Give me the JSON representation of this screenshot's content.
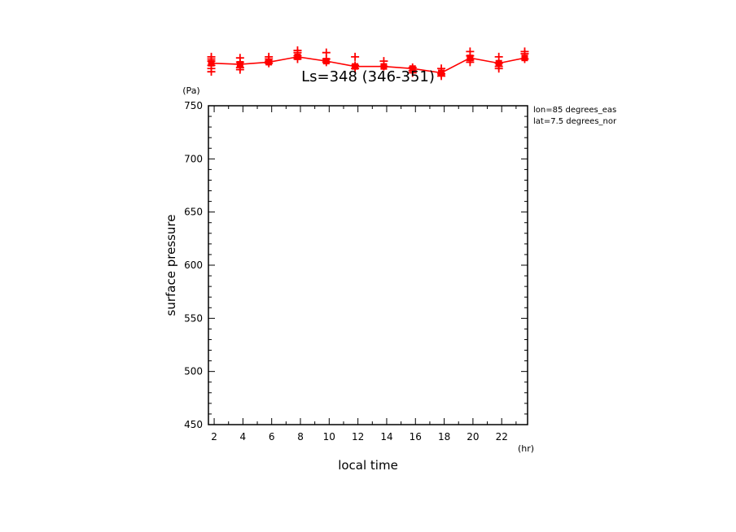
{
  "chart_data": {
    "type": "line",
    "title": "Ls=348 (346-351)",
    "xlabel": "local time",
    "ylabel": "surface pressure",
    "x_unit": "(hr)",
    "y_unit": "(Pa)",
    "annotations": [
      "lon=85 degrees_eas",
      "lat=7.5 degrees_nor"
    ],
    "xlim": [
      1.6,
      23.8
    ],
    "ylim": [
      450,
      750
    ],
    "x_ticks": [
      2,
      4,
      6,
      8,
      10,
      12,
      14,
      16,
      18,
      20,
      22
    ],
    "y_ticks": [
      450,
      500,
      550,
      600,
      650,
      700,
      750
    ],
    "color": "#ff0000",
    "mean": {
      "x": [
        1.8,
        3.8,
        5.8,
        7.8,
        9.8,
        11.8,
        13.8,
        15.8,
        17.8,
        19.8,
        21.8,
        23.6
      ],
      "y": [
        790,
        789,
        791,
        796,
        792,
        787,
        787,
        785,
        781,
        795,
        790,
        795
      ]
    },
    "samples": {
      "x": [
        1.8,
        1.8,
        1.8,
        1.8,
        1.8,
        1.8,
        3.8,
        3.8,
        3.8,
        3.8,
        5.8,
        5.8,
        5.8,
        5.8,
        7.8,
        7.8,
        7.8,
        7.8,
        9.8,
        9.8,
        9.8,
        11.8,
        11.8,
        11.8,
        13.8,
        13.8,
        15.8,
        15.8,
        15.8,
        17.8,
        17.8,
        17.8,
        19.8,
        19.8,
        19.8,
        19.8,
        21.8,
        21.8,
        21.8,
        21.8,
        23.6,
        23.6,
        23.6
      ],
      "y": [
        796,
        794,
        792,
        788,
        785,
        782,
        795,
        791,
        786,
        784,
        796,
        794,
        792,
        790,
        802,
        800,
        797,
        794,
        800,
        794,
        791,
        796,
        788,
        785,
        792,
        787,
        786,
        783,
        781,
        785,
        780,
        778,
        801,
        797,
        793,
        791,
        796,
        790,
        787,
        785,
        801,
        799,
        794
      ]
    }
  }
}
